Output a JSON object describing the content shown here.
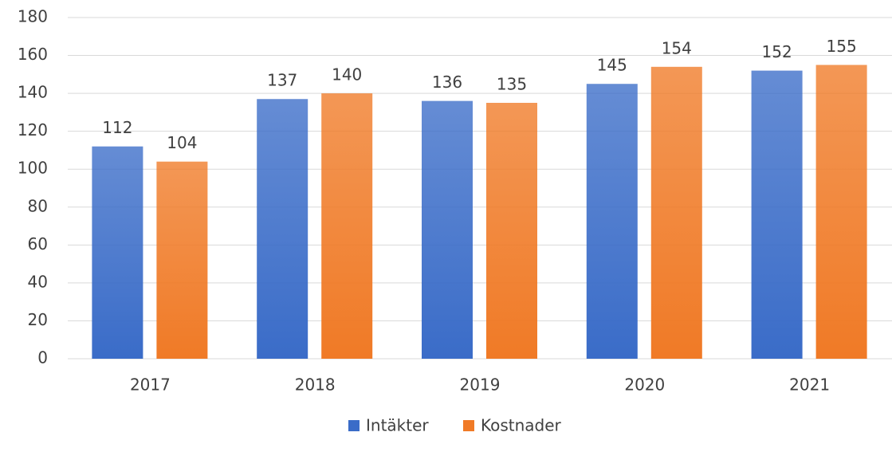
{
  "chart_data": {
    "type": "bar",
    "categories": [
      "2017",
      "2018",
      "2019",
      "2020",
      "2021"
    ],
    "series": [
      {
        "name": "Intäkter",
        "color": "#3a6cc8",
        "values": [
          112,
          137,
          136,
          145,
          152
        ]
      },
      {
        "name": "Kostnader",
        "color": "#f07a26",
        "values": [
          104,
          140,
          135,
          154,
          155
        ]
      }
    ],
    "ylim": [
      0,
      180
    ],
    "yticks": [
      0,
      20,
      40,
      60,
      80,
      100,
      120,
      140,
      160,
      180
    ],
    "grid": true,
    "legend": "bottom"
  }
}
